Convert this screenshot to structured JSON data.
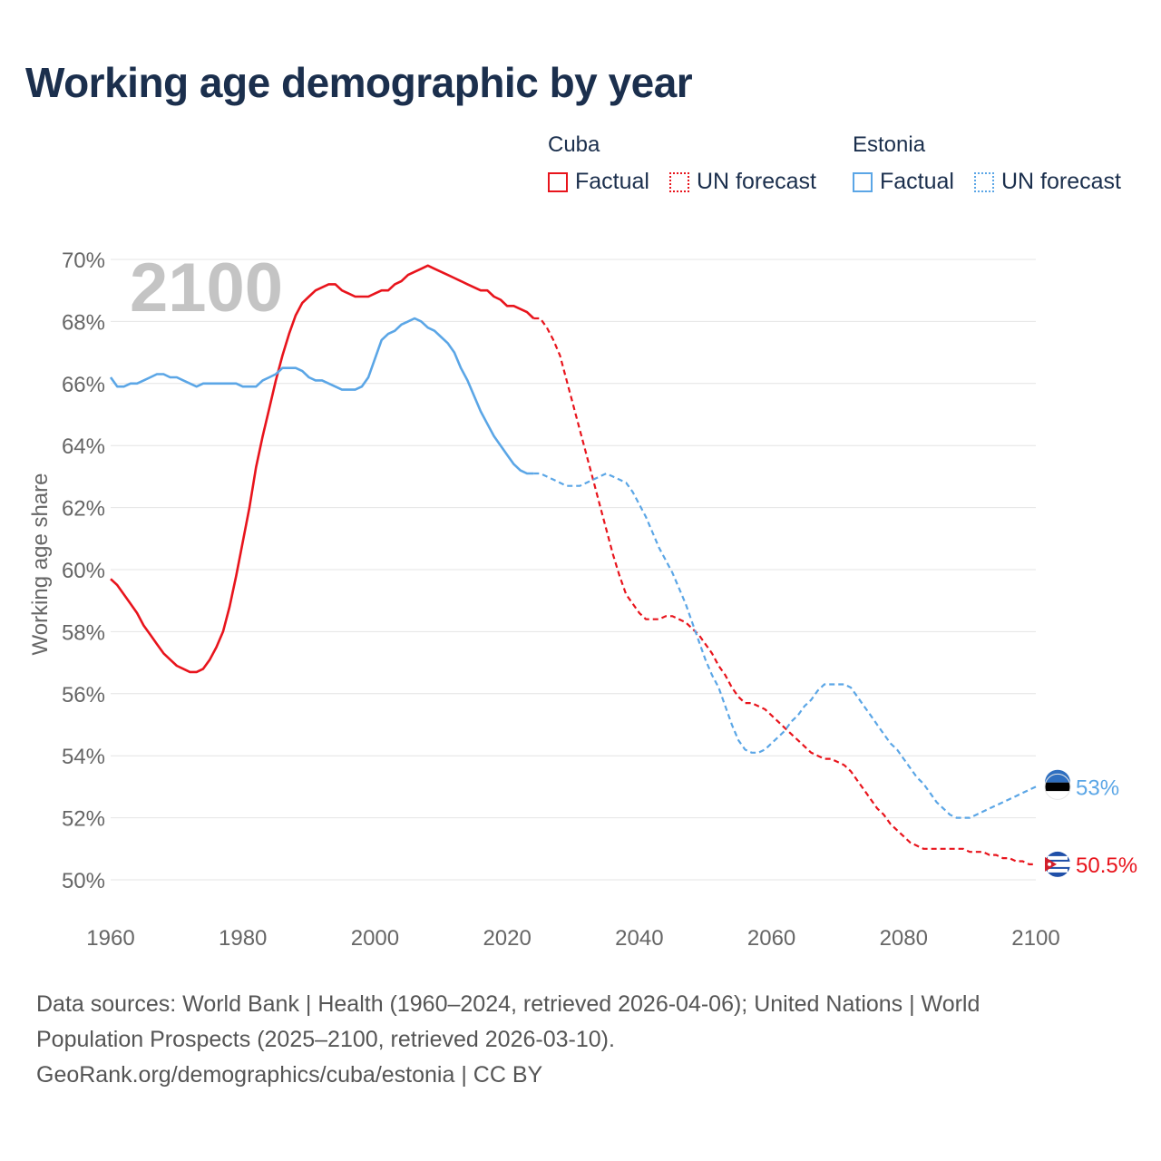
{
  "title": "Working age demographic by year",
  "legend": {
    "groups": [
      {
        "name": "Cuba",
        "factual_label": "Factual",
        "forecast_label": "UN forecast",
        "color": "#e8141c"
      },
      {
        "name": "Estonia",
        "factual_label": "Factual",
        "forecast_label": "UN forecast",
        "color": "#5ba6e6"
      }
    ]
  },
  "footer": {
    "line1": "Data sources: World Bank | Health (1960–2024, retrieved 2026-04-06); United Nations | World",
    "line2": "Population Prospects (2025–2100, retrieved 2026-03-10).",
    "line3": "GeoRank.org/demographics/cuba/estonia | CC BY"
  },
  "chart_data": {
    "type": "line",
    "title": "Working age demographic by year",
    "year_label": "2100",
    "xlabel": "",
    "ylabel": "Working age share",
    "xlim": [
      1960,
      2100
    ],
    "ylim": [
      50,
      70
    ],
    "x_ticks": [
      1960,
      1980,
      2000,
      2020,
      2040,
      2060,
      2080,
      2100
    ],
    "y_ticks": [
      50,
      52,
      54,
      56,
      58,
      60,
      62,
      64,
      66,
      68,
      70
    ],
    "y_tick_labels": [
      "50%",
      "52%",
      "54%",
      "56%",
      "58%",
      "60%",
      "62%",
      "64%",
      "66%",
      "68%",
      "70%"
    ],
    "grid": true,
    "series": [
      {
        "name": "Cuba",
        "color": "#e8141c",
        "end_label": "50.5%",
        "factual": [
          [
            1960,
            59.7
          ],
          [
            1961,
            59.5
          ],
          [
            1962,
            59.2
          ],
          [
            1963,
            58.9
          ],
          [
            1964,
            58.6
          ],
          [
            1965,
            58.2
          ],
          [
            1966,
            57.9
          ],
          [
            1967,
            57.6
          ],
          [
            1968,
            57.3
          ],
          [
            1969,
            57.1
          ],
          [
            1970,
            56.9
          ],
          [
            1971,
            56.8
          ],
          [
            1972,
            56.7
          ],
          [
            1973,
            56.7
          ],
          [
            1974,
            56.8
          ],
          [
            1975,
            57.1
          ],
          [
            1976,
            57.5
          ],
          [
            1977,
            58.0
          ],
          [
            1978,
            58.8
          ],
          [
            1979,
            59.8
          ],
          [
            1980,
            60.9
          ],
          [
            1981,
            62.0
          ],
          [
            1982,
            63.3
          ],
          [
            1983,
            64.3
          ],
          [
            1984,
            65.2
          ],
          [
            1985,
            66.1
          ],
          [
            1986,
            66.9
          ],
          [
            1987,
            67.6
          ],
          [
            1988,
            68.2
          ],
          [
            1989,
            68.6
          ],
          [
            1990,
            68.8
          ],
          [
            1991,
            69.0
          ],
          [
            1992,
            69.1
          ],
          [
            1993,
            69.2
          ],
          [
            1994,
            69.2
          ],
          [
            1995,
            69.0
          ],
          [
            1996,
            68.9
          ],
          [
            1997,
            68.8
          ],
          [
            1998,
            68.8
          ],
          [
            1999,
            68.8
          ],
          [
            2000,
            68.9
          ],
          [
            2001,
            69.0
          ],
          [
            2002,
            69.0
          ],
          [
            2003,
            69.2
          ],
          [
            2004,
            69.3
          ],
          [
            2005,
            69.5
          ],
          [
            2006,
            69.6
          ],
          [
            2007,
            69.7
          ],
          [
            2008,
            69.8
          ],
          [
            2009,
            69.7
          ],
          [
            2010,
            69.6
          ],
          [
            2011,
            69.5
          ],
          [
            2012,
            69.4
          ],
          [
            2013,
            69.3
          ],
          [
            2014,
            69.2
          ],
          [
            2015,
            69.1
          ],
          [
            2016,
            69.0
          ],
          [
            2017,
            69.0
          ],
          [
            2018,
            68.8
          ],
          [
            2019,
            68.7
          ],
          [
            2020,
            68.5
          ],
          [
            2021,
            68.5
          ],
          [
            2022,
            68.4
          ],
          [
            2023,
            68.3
          ],
          [
            2024,
            68.1
          ]
        ],
        "forecast": [
          [
            2024,
            68.1
          ],
          [
            2025,
            68.1
          ],
          [
            2026,
            67.8
          ],
          [
            2027,
            67.4
          ],
          [
            2028,
            66.9
          ],
          [
            2029,
            66.1
          ],
          [
            2030,
            65.3
          ],
          [
            2031,
            64.5
          ],
          [
            2032,
            63.7
          ],
          [
            2033,
            62.9
          ],
          [
            2034,
            62.1
          ],
          [
            2035,
            61.3
          ],
          [
            2036,
            60.5
          ],
          [
            2037,
            59.8
          ],
          [
            2038,
            59.2
          ],
          [
            2039,
            58.9
          ],
          [
            2040,
            58.6
          ],
          [
            2041,
            58.4
          ],
          [
            2042,
            58.4
          ],
          [
            2043,
            58.4
          ],
          [
            2044,
            58.5
          ],
          [
            2045,
            58.5
          ],
          [
            2046,
            58.4
          ],
          [
            2047,
            58.3
          ],
          [
            2048,
            58.1
          ],
          [
            2049,
            57.9
          ],
          [
            2050,
            57.6
          ],
          [
            2051,
            57.3
          ],
          [
            2052,
            56.9
          ],
          [
            2053,
            56.6
          ],
          [
            2054,
            56.2
          ],
          [
            2055,
            55.9
          ],
          [
            2056,
            55.7
          ],
          [
            2057,
            55.7
          ],
          [
            2058,
            55.6
          ],
          [
            2059,
            55.5
          ],
          [
            2060,
            55.3
          ],
          [
            2061,
            55.1
          ],
          [
            2062,
            54.9
          ],
          [
            2063,
            54.7
          ],
          [
            2064,
            54.5
          ],
          [
            2065,
            54.3
          ],
          [
            2066,
            54.1
          ],
          [
            2067,
            54.0
          ],
          [
            2068,
            53.9
          ],
          [
            2069,
            53.9
          ],
          [
            2070,
            53.8
          ],
          [
            2071,
            53.7
          ],
          [
            2072,
            53.5
          ],
          [
            2073,
            53.2
          ],
          [
            2074,
            52.9
          ],
          [
            2075,
            52.6
          ],
          [
            2076,
            52.3
          ],
          [
            2077,
            52.1
          ],
          [
            2078,
            51.8
          ],
          [
            2079,
            51.6
          ],
          [
            2080,
            51.4
          ],
          [
            2081,
            51.2
          ],
          [
            2082,
            51.1
          ],
          [
            2083,
            51.0
          ],
          [
            2084,
            51.0
          ],
          [
            2085,
            51.0
          ],
          [
            2086,
            51.0
          ],
          [
            2087,
            51.0
          ],
          [
            2088,
            51.0
          ],
          [
            2089,
            51.0
          ],
          [
            2090,
            50.9
          ],
          [
            2091,
            50.9
          ],
          [
            2092,
            50.9
          ],
          [
            2093,
            50.8
          ],
          [
            2094,
            50.8
          ],
          [
            2095,
            50.7
          ],
          [
            2096,
            50.7
          ],
          [
            2097,
            50.6
          ],
          [
            2098,
            50.6
          ],
          [
            2099,
            50.5
          ],
          [
            2100,
            50.5
          ]
        ]
      },
      {
        "name": "Estonia",
        "color": "#5ba6e6",
        "end_label": "53%",
        "factual": [
          [
            1960,
            66.2
          ],
          [
            1961,
            65.9
          ],
          [
            1962,
            65.9
          ],
          [
            1963,
            66.0
          ],
          [
            1964,
            66.0
          ],
          [
            1965,
            66.1
          ],
          [
            1966,
            66.2
          ],
          [
            1967,
            66.3
          ],
          [
            1968,
            66.3
          ],
          [
            1969,
            66.2
          ],
          [
            1970,
            66.2
          ],
          [
            1971,
            66.1
          ],
          [
            1972,
            66.0
          ],
          [
            1973,
            65.9
          ],
          [
            1974,
            66.0
          ],
          [
            1975,
            66.0
          ],
          [
            1976,
            66.0
          ],
          [
            1977,
            66.0
          ],
          [
            1978,
            66.0
          ],
          [
            1979,
            66.0
          ],
          [
            1980,
            65.9
          ],
          [
            1981,
            65.9
          ],
          [
            1982,
            65.9
          ],
          [
            1983,
            66.1
          ],
          [
            1984,
            66.2
          ],
          [
            1985,
            66.3
          ],
          [
            1986,
            66.5
          ],
          [
            1987,
            66.5
          ],
          [
            1988,
            66.5
          ],
          [
            1989,
            66.4
          ],
          [
            1990,
            66.2
          ],
          [
            1991,
            66.1
          ],
          [
            1992,
            66.1
          ],
          [
            1993,
            66.0
          ],
          [
            1994,
            65.9
          ],
          [
            1995,
            65.8
          ],
          [
            1996,
            65.8
          ],
          [
            1997,
            65.8
          ],
          [
            1998,
            65.9
          ],
          [
            1999,
            66.2
          ],
          [
            2000,
            66.8
          ],
          [
            2001,
            67.4
          ],
          [
            2002,
            67.6
          ],
          [
            2003,
            67.7
          ],
          [
            2004,
            67.9
          ],
          [
            2005,
            68.0
          ],
          [
            2006,
            68.1
          ],
          [
            2007,
            68.0
          ],
          [
            2008,
            67.8
          ],
          [
            2009,
            67.7
          ],
          [
            2010,
            67.5
          ],
          [
            2011,
            67.3
          ],
          [
            2012,
            67.0
          ],
          [
            2013,
            66.5
          ],
          [
            2014,
            66.1
          ],
          [
            2015,
            65.6
          ],
          [
            2016,
            65.1
          ],
          [
            2017,
            64.7
          ],
          [
            2018,
            64.3
          ],
          [
            2019,
            64.0
          ],
          [
            2020,
            63.7
          ],
          [
            2021,
            63.4
          ],
          [
            2022,
            63.2
          ],
          [
            2023,
            63.1
          ],
          [
            2024,
            63.1
          ]
        ],
        "forecast": [
          [
            2024,
            63.1
          ],
          [
            2025,
            63.1
          ],
          [
            2026,
            63.0
          ],
          [
            2027,
            62.9
          ],
          [
            2028,
            62.8
          ],
          [
            2029,
            62.7
          ],
          [
            2030,
            62.7
          ],
          [
            2031,
            62.7
          ],
          [
            2032,
            62.8
          ],
          [
            2033,
            62.9
          ],
          [
            2034,
            63.0
          ],
          [
            2035,
            63.1
          ],
          [
            2036,
            63.0
          ],
          [
            2037,
            62.9
          ],
          [
            2038,
            62.8
          ],
          [
            2039,
            62.5
          ],
          [
            2040,
            62.1
          ],
          [
            2041,
            61.7
          ],
          [
            2042,
            61.2
          ],
          [
            2043,
            60.7
          ],
          [
            2044,
            60.3
          ],
          [
            2045,
            59.9
          ],
          [
            2046,
            59.4
          ],
          [
            2047,
            58.9
          ],
          [
            2048,
            58.3
          ],
          [
            2049,
            57.7
          ],
          [
            2050,
            57.1
          ],
          [
            2051,
            56.6
          ],
          [
            2052,
            56.2
          ],
          [
            2053,
            55.6
          ],
          [
            2054,
            55.0
          ],
          [
            2055,
            54.5
          ],
          [
            2056,
            54.2
          ],
          [
            2057,
            54.1
          ],
          [
            2058,
            54.1
          ],
          [
            2059,
            54.2
          ],
          [
            2060,
            54.4
          ],
          [
            2061,
            54.6
          ],
          [
            2062,
            54.8
          ],
          [
            2063,
            55.1
          ],
          [
            2064,
            55.3
          ],
          [
            2065,
            55.6
          ],
          [
            2066,
            55.8
          ],
          [
            2067,
            56.1
          ],
          [
            2068,
            56.3
          ],
          [
            2069,
            56.3
          ],
          [
            2070,
            56.3
          ],
          [
            2071,
            56.3
          ],
          [
            2072,
            56.2
          ],
          [
            2073,
            55.9
          ],
          [
            2074,
            55.6
          ],
          [
            2075,
            55.3
          ],
          [
            2076,
            55.0
          ],
          [
            2077,
            54.7
          ],
          [
            2078,
            54.4
          ],
          [
            2079,
            54.2
          ],
          [
            2080,
            53.9
          ],
          [
            2081,
            53.6
          ],
          [
            2082,
            53.3
          ],
          [
            2083,
            53.1
          ],
          [
            2084,
            52.8
          ],
          [
            2085,
            52.5
          ],
          [
            2086,
            52.3
          ],
          [
            2087,
            52.1
          ],
          [
            2088,
            52.0
          ],
          [
            2089,
            52.0
          ],
          [
            2090,
            52.0
          ],
          [
            2091,
            52.1
          ],
          [
            2092,
            52.2
          ],
          [
            2093,
            52.3
          ],
          [
            2094,
            52.4
          ],
          [
            2095,
            52.5
          ],
          [
            2096,
            52.6
          ],
          [
            2097,
            52.7
          ],
          [
            2098,
            52.8
          ],
          [
            2099,
            52.9
          ],
          [
            2100,
            53.0
          ]
        ]
      }
    ]
  }
}
